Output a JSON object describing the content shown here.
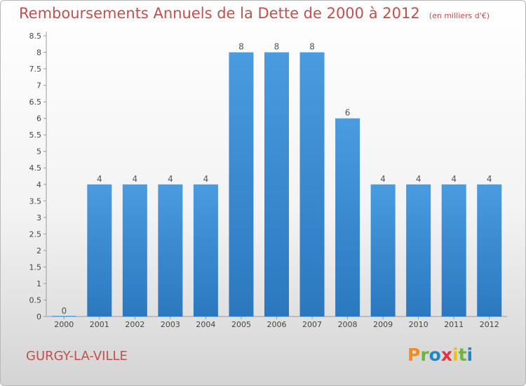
{
  "header": {
    "title": "Remboursements Annuels de la Dette de 2000 à 2012",
    "subtitle": "(en milliers d'€)"
  },
  "footer": {
    "commune": "GURGY-LA-VILLE",
    "logo_text": "Proxiti",
    "logo_colors": [
      "#f28c1c",
      "#6fb43f",
      "#1f86c8",
      "#e2343a",
      "#f2c200",
      "#6fb43f",
      "#1f86c8"
    ]
  },
  "chart_data": {
    "type": "bar",
    "categories": [
      "2000",
      "2001",
      "2002",
      "2003",
      "2004",
      "2005",
      "2006",
      "2007",
      "2008",
      "2009",
      "2010",
      "2011",
      "2012"
    ],
    "values": [
      0,
      4,
      4,
      4,
      4,
      8,
      8,
      8,
      6,
      4,
      4,
      4,
      4
    ],
    "data_labels": [
      "0",
      "4",
      "4",
      "4",
      "4",
      "8",
      "8",
      "8",
      "6",
      "4",
      "4",
      "4",
      "4"
    ],
    "yticks": [
      "0",
      "0.5",
      "1",
      "1.5",
      "2",
      "2.5",
      "3",
      "3.5",
      "4",
      "4.5",
      "5",
      "5.5",
      "6",
      "6.5",
      "7",
      "7.5",
      "8",
      "8.5"
    ],
    "ylim": [
      0,
      8.5
    ],
    "grid": false,
    "bar_color": "#4a9be0",
    "bar_color_dark": "#2b78bf",
    "title": "Remboursements Annuels de la Dette de 2000 à 2012",
    "xlabel": "",
    "ylabel": ""
  }
}
